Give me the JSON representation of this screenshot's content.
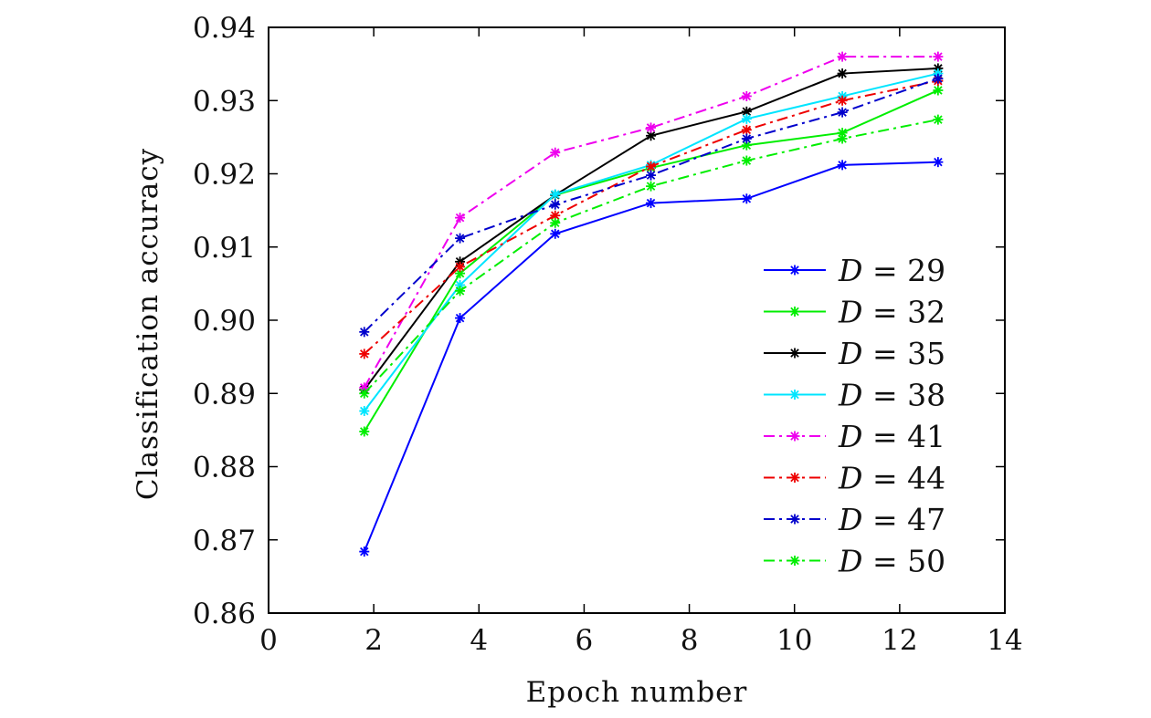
{
  "chart_data": {
    "type": "line",
    "title": "",
    "xlabel": "Epoch number",
    "ylabel": "Classification accuracy",
    "xlim": [
      0,
      14
    ],
    "ylim": [
      0.86,
      0.94
    ],
    "xticks": [
      0,
      2,
      4,
      6,
      8,
      10,
      12,
      14
    ],
    "xtick_labels": [
      "0",
      "2",
      "4",
      "6",
      "8",
      "10",
      "12",
      "14"
    ],
    "yticks": [
      0.86,
      0.87,
      0.88,
      0.89,
      0.9,
      0.91,
      0.92,
      0.93,
      0.94
    ],
    "ytick_labels": [
      "0.86",
      "0.87",
      "0.88",
      "0.89",
      "0.90",
      "0.91",
      "0.92",
      "0.93",
      "0.94"
    ],
    "grid": false,
    "legend_position": "lower-right",
    "x": [
      1.82,
      3.64,
      5.45,
      7.27,
      9.09,
      10.91,
      12.73
    ],
    "series": [
      {
        "name": "D = 29",
        "var": "D",
        "eq": "= 29",
        "color": "#0000ff",
        "dash": "solid",
        "values": [
          0.8684,
          0.9003,
          0.9118,
          0.916,
          0.9166,
          0.9212,
          0.9216
        ]
      },
      {
        "name": "D = 32",
        "var": "D",
        "eq": "= 32",
        "color": "#00ee00",
        "dash": "solid",
        "values": [
          0.8848,
          0.9064,
          0.9171,
          0.9208,
          0.9239,
          0.9256,
          0.9314
        ]
      },
      {
        "name": "D = 35",
        "var": "D",
        "eq": "= 35",
        "color": "#000000",
        "dash": "solid",
        "values": [
          0.8905,
          0.908,
          0.9171,
          0.9252,
          0.9285,
          0.9337,
          0.9344
        ]
      },
      {
        "name": "D = 38",
        "var": "D",
        "eq": "= 38",
        "color": "#00e5ff",
        "dash": "solid",
        "values": [
          0.8876,
          0.9048,
          0.9172,
          0.9212,
          0.9275,
          0.9306,
          0.9337
        ]
      },
      {
        "name": "D = 41",
        "var": "D",
        "eq": "= 41",
        "color": "#ee00ee",
        "dash": "dashdot",
        "values": [
          0.8908,
          0.914,
          0.9229,
          0.9263,
          0.9306,
          0.936,
          0.936
        ]
      },
      {
        "name": "D = 44",
        "var": "D",
        "eq": "= 44",
        "color": "#ee0000",
        "dash": "dashdot",
        "values": [
          0.8954,
          0.9073,
          0.9143,
          0.921,
          0.926,
          0.93,
          0.9327
        ]
      },
      {
        "name": "D = 47",
        "var": "D",
        "eq": "= 47",
        "color": "#0000cc",
        "dash": "dashdot",
        "values": [
          0.8984,
          0.9112,
          0.9158,
          0.9198,
          0.9248,
          0.9284,
          0.933
        ]
      },
      {
        "name": "D = 50",
        "var": "D",
        "eq": "= 50",
        "color": "#00ee00",
        "dash": "dashdot",
        "values": [
          0.89,
          0.904,
          0.9133,
          0.9183,
          0.9218,
          0.9248,
          0.9274
        ]
      }
    ]
  }
}
